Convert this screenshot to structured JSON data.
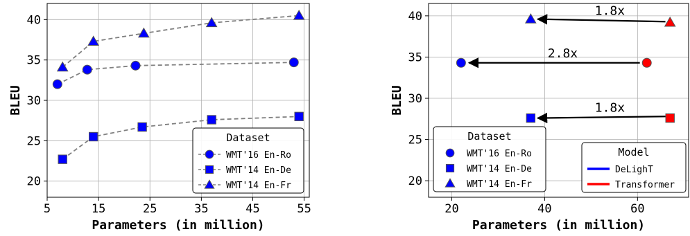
{
  "colors": {
    "delight": "#0000ff",
    "transformer": "#ff0000",
    "marker_edge": "#555555",
    "dash_line": "#808080",
    "grid": "#b0b0b0"
  },
  "chart_data": [
    {
      "type": "line",
      "xlabel": "Parameters (in million)",
      "ylabel": "BLEU",
      "xlim": [
        5,
        56
      ],
      "ylim": [
        18,
        42
      ],
      "xticks": [
        "5",
        "15",
        "25",
        "35",
        "45",
        "55"
      ],
      "yticks": [
        "20",
        "25",
        "30",
        "35",
        "40"
      ],
      "grid": true,
      "legend": {
        "title": "Dataset",
        "placement": "bottom-right",
        "entries": [
          "WMT'16 En-Ro",
          "WMT'14 En-De",
          "WMT'14 En-Fr"
        ]
      },
      "series": [
        {
          "name": "WMT'16 En-Ro",
          "marker": "circle",
          "x": [
            7,
            12.8,
            22.2,
            53
          ],
          "y": [
            32.0,
            33.8,
            34.3,
            34.7
          ]
        },
        {
          "name": "WMT'14 En-De",
          "marker": "square",
          "x": [
            8,
            14,
            23.5,
            37,
            54
          ],
          "y": [
            22.7,
            25.5,
            26.7,
            27.6,
            28.0
          ]
        },
        {
          "name": "WMT'14 En-Fr",
          "marker": "triangle",
          "x": [
            8,
            14,
            23.8,
            37,
            54
          ],
          "y": [
            34.1,
            37.3,
            38.3,
            39.6,
            40.5
          ]
        }
      ]
    },
    {
      "type": "scatter",
      "xlabel": "Parameters (in million)",
      "ylabel": "BLEU",
      "xlim": [
        15,
        71
      ],
      "ylim": [
        18,
        41.5
      ],
      "xticks": [
        "20",
        "40",
        "60"
      ],
      "yticks": [
        "20",
        "25",
        "30",
        "35",
        "40"
      ],
      "grid": true,
      "legends": [
        {
          "title": "Dataset",
          "placement": "bottom-left",
          "entries": [
            "WMT'16 En-Ro",
            "WMT'14 En-De",
            "WMT'14 En-Fr"
          ]
        },
        {
          "title": "Model",
          "placement": "bottom-right",
          "entries": [
            "DeLighT",
            "Transformer"
          ]
        }
      ],
      "points": [
        {
          "dataset": "WMT'16 En-Ro",
          "marker": "circle",
          "model": "DeLighT",
          "x": 22,
          "y": 34.3
        },
        {
          "dataset": "WMT'16 En-Ro",
          "marker": "circle",
          "model": "Transformer",
          "x": 62,
          "y": 34.3
        },
        {
          "dataset": "WMT'14 En-De",
          "marker": "square",
          "model": "DeLighT",
          "x": 37,
          "y": 27.6
        },
        {
          "dataset": "WMT'14 En-De",
          "marker": "square",
          "model": "Transformer",
          "x": 67,
          "y": 27.6
        },
        {
          "dataset": "WMT'14 En-Fr",
          "marker": "triangle",
          "model": "DeLighT",
          "x": 37,
          "y": 39.6
        },
        {
          "dataset": "WMT'14 En-Fr",
          "marker": "triangle",
          "model": "Transformer",
          "x": 67,
          "y": 39.2
        }
      ],
      "annotations": [
        {
          "text": "1.8x",
          "from": [
            66,
            39.3
          ],
          "to": [
            38.5,
            39.6
          ]
        },
        {
          "text": "2.8x",
          "from": [
            60.5,
            34.3
          ],
          "to": [
            23.7,
            34.3
          ]
        },
        {
          "text": "1.8x",
          "from": [
            66,
            27.8
          ],
          "to": [
            38.5,
            27.6
          ]
        }
      ]
    }
  ]
}
